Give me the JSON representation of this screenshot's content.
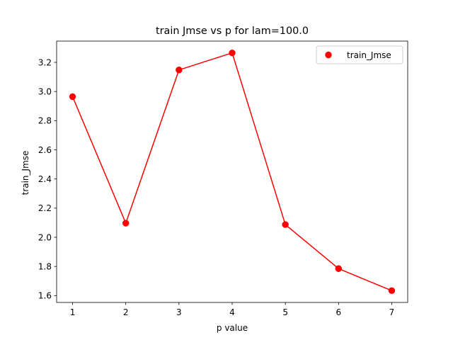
{
  "chart_data": {
    "type": "line",
    "title": "train Jmse vs p for lam=100.0",
    "xlabel": "p value",
    "ylabel": "train_Jmse",
    "x": [
      1,
      2,
      3,
      4,
      5,
      6,
      7
    ],
    "series": [
      {
        "name": "train_Jmse",
        "color": "#ff0000",
        "values": [
          2.965,
          2.097,
          3.148,
          3.265,
          2.087,
          1.785,
          1.634
        ]
      }
    ],
    "xlim": [
      0.7,
      7.3
    ],
    "ylim": [
      1.553,
      3.346
    ],
    "xticks": [
      1,
      2,
      3,
      4,
      5,
      6,
      7
    ],
    "yticks": [
      1.6,
      1.8,
      2.0,
      2.2,
      2.4,
      2.6,
      2.8,
      3.0,
      3.2
    ],
    "ytick_labels": [
      "1.6",
      "1.8",
      "2.0",
      "2.2",
      "2.4",
      "2.6",
      "2.8",
      "3.0",
      "3.2"
    ],
    "legend": {
      "entries": [
        "train_Jmse"
      ],
      "position": "top-right"
    },
    "grid": false,
    "markers": "circle",
    "line_connected": true
  }
}
